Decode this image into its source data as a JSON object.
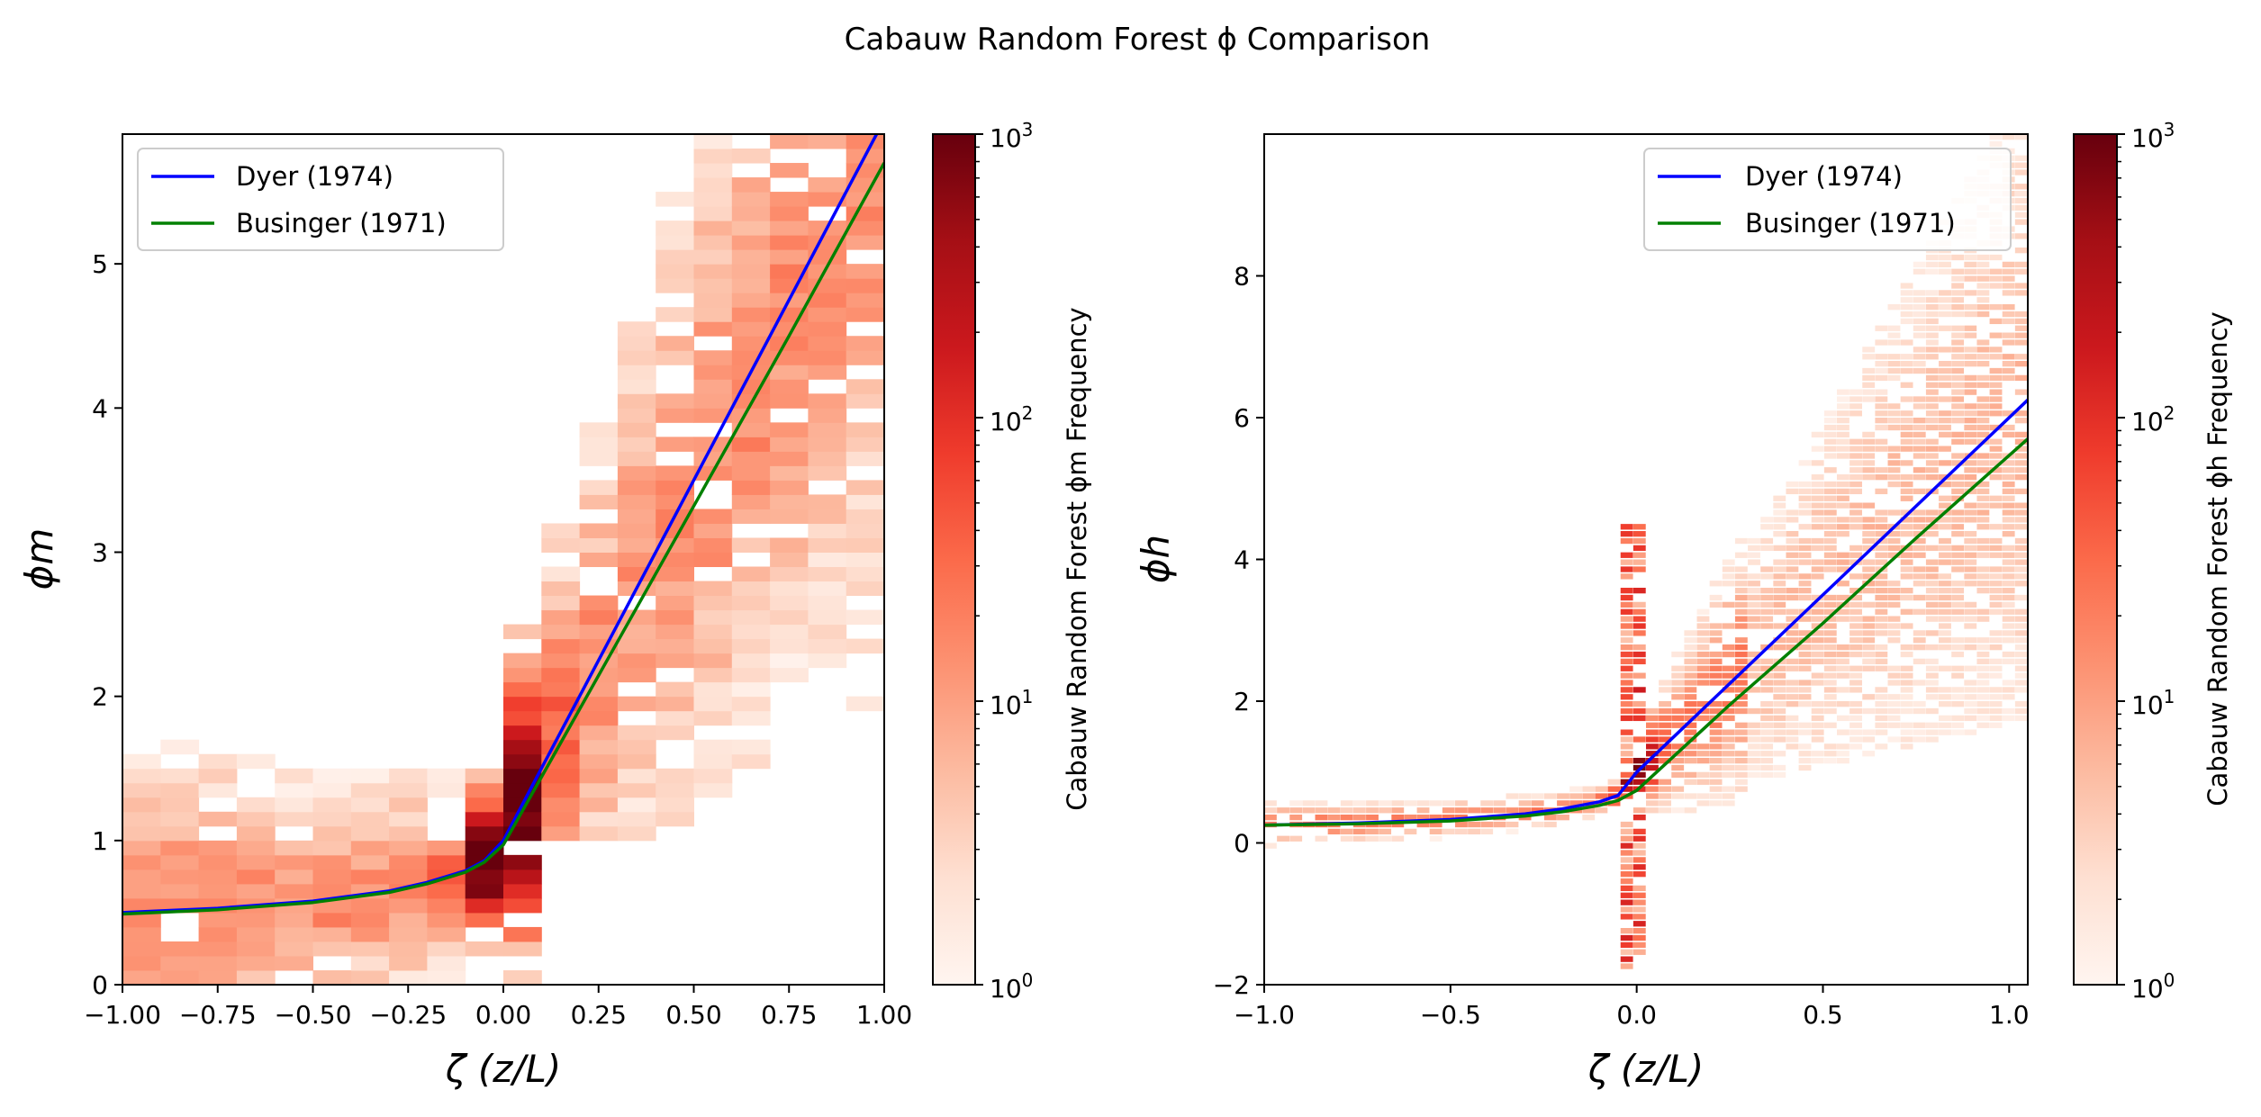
{
  "figure_title": "Cabauw Random Forest ϕ Comparison",
  "chart_data": [
    {
      "type": "heatmap",
      "title": "",
      "xlabel": "ζ (z/L)",
      "ylabel": "ϕm",
      "xlim": [
        -1.0,
        1.0
      ],
      "ylim": [
        0,
        5.9
      ],
      "x_ticks": [
        "−1.00",
        "−0.75",
        "−0.50",
        "−0.25",
        "0.00",
        "0.25",
        "0.50",
        "0.75",
        "1.00"
      ],
      "x_tick_values": [
        -1.0,
        -0.75,
        -0.5,
        -0.25,
        0.0,
        0.25,
        0.5,
        0.75,
        1.0
      ],
      "y_ticks": [
        "0",
        "1",
        "2",
        "3",
        "4",
        "5"
      ],
      "y_tick_values": [
        0,
        1,
        2,
        3,
        4,
        5
      ],
      "colormap": "Reds (log scale)",
      "colorbar": {
        "label": "Cabauw Random Forest ϕm Frequency",
        "scale": "log",
        "range": [
          1,
          1000
        ],
        "tick_values": [
          1,
          10,
          100,
          1000
        ],
        "tick_labels": [
          "10",
          "10",
          "10",
          "10"
        ],
        "tick_exponents": [
          "0",
          "1",
          "2",
          "3"
        ]
      },
      "legend": {
        "position": "upper-left"
      },
      "series": [
        {
          "name": "Dyer (1974)",
          "color": "#0000ff",
          "type": "line",
          "x": [
            -1.0,
            -0.75,
            -0.5,
            -0.3,
            -0.2,
            -0.1,
            -0.05,
            0.0,
            0.1,
            0.3,
            0.5,
            0.75,
            1.0
          ],
          "y": [
            0.5,
            0.53,
            0.58,
            0.65,
            0.71,
            0.79,
            0.86,
            1.0,
            1.5,
            2.5,
            3.5,
            4.75,
            6.0
          ]
        },
        {
          "name": "Businger (1971)",
          "color": "#008000",
          "type": "line",
          "x": [
            -1.0,
            -0.75,
            -0.5,
            -0.3,
            -0.2,
            -0.1,
            -0.05,
            0.0,
            0.1,
            0.3,
            0.5,
            0.75,
            1.0
          ],
          "y": [
            0.49,
            0.52,
            0.57,
            0.64,
            0.7,
            0.78,
            0.85,
            0.97,
            1.44,
            2.38,
            3.32,
            4.5,
            5.7
          ]
        }
      ]
    },
    {
      "type": "heatmap",
      "title": "",
      "xlabel": "ζ (z/L)",
      "ylabel": "ϕh",
      "xlim": [
        -1.0,
        1.05
      ],
      "ylim": [
        -2,
        10
      ],
      "x_ticks": [
        "−1.0",
        "−0.5",
        "0.0",
        "0.5",
        "1.0"
      ],
      "x_tick_values": [
        -1.0,
        -0.5,
        0.0,
        0.5,
        1.0
      ],
      "y_ticks": [
        "−2",
        "0",
        "2",
        "4",
        "6",
        "8"
      ],
      "y_tick_values": [
        -2,
        0,
        2,
        4,
        6,
        8
      ],
      "colormap": "Reds (log scale)",
      "colorbar": {
        "label": "Cabauw Random Forest ϕh Frequency",
        "scale": "log",
        "range": [
          1,
          1000
        ],
        "tick_values": [
          1,
          10,
          100,
          1000
        ],
        "tick_labels": [
          "10",
          "10",
          "10",
          "10"
        ],
        "tick_exponents": [
          "0",
          "1",
          "2",
          "3"
        ]
      },
      "legend": {
        "position": "upper-right"
      },
      "series": [
        {
          "name": "Dyer (1974)",
          "color": "#0000ff",
          "type": "line",
          "x": [
            -1.0,
            -0.75,
            -0.5,
            -0.3,
            -0.2,
            -0.1,
            -0.05,
            0.0,
            0.25,
            0.5,
            0.75,
            1.05
          ],
          "y": [
            0.25,
            0.28,
            0.33,
            0.41,
            0.48,
            0.58,
            0.67,
            1.0,
            2.25,
            3.5,
            4.75,
            6.25
          ]
        },
        {
          "name": "Businger (1971)",
          "color": "#008000",
          "type": "line",
          "x": [
            -1.0,
            -0.75,
            -0.5,
            -0.3,
            -0.2,
            -0.1,
            -0.05,
            0.0,
            0.25,
            0.5,
            0.75,
            1.05
          ],
          "y": [
            0.25,
            0.27,
            0.31,
            0.38,
            0.44,
            0.53,
            0.6,
            0.74,
            1.95,
            3.1,
            4.3,
            5.7
          ]
        }
      ]
    }
  ],
  "colors": {
    "dyer": "#0000ff",
    "businger": "#008000",
    "cmap_low": "#fff5f0",
    "cmap_high": "#67000d"
  }
}
